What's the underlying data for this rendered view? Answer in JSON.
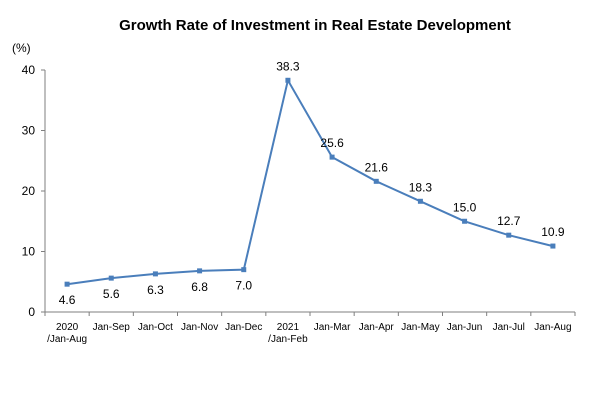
{
  "chart_data": {
    "type": "line",
    "title": "Growth Rate of Investment in Real Estate Development",
    "unit_label": "(%)",
    "ylim": [
      0,
      40
    ],
    "yticks": [
      "0",
      "10",
      "20",
      "30",
      "40"
    ],
    "categories": [
      [
        "2020",
        "/Jan-Aug"
      ],
      [
        "Jan-Sep"
      ],
      [
        "Jan-Oct"
      ],
      [
        "Jan-Nov"
      ],
      [
        "Jan-Dec"
      ],
      [
        "2021",
        "/Jan-Feb"
      ],
      [
        "Jan-Mar"
      ],
      [
        "Jan-Apr"
      ],
      [
        "Jan-May"
      ],
      [
        "Jan-Jun"
      ],
      [
        "Jan-Jul"
      ],
      [
        "Jan-Aug"
      ]
    ],
    "series": [
      {
        "values": [
          4.6,
          5.6,
          6.3,
          6.8,
          7.0,
          38.3,
          25.6,
          21.6,
          18.3,
          15.0,
          12.7,
          10.9
        ],
        "labels": [
          "4.6",
          "5.6",
          "6.3",
          "6.8",
          "7.0",
          "38.3",
          "25.6",
          "21.6",
          "18.3",
          "15.0",
          "12.7",
          "10.9"
        ]
      }
    ],
    "line_color": "#4a7ebb",
    "grid": false,
    "legend": "none"
  }
}
